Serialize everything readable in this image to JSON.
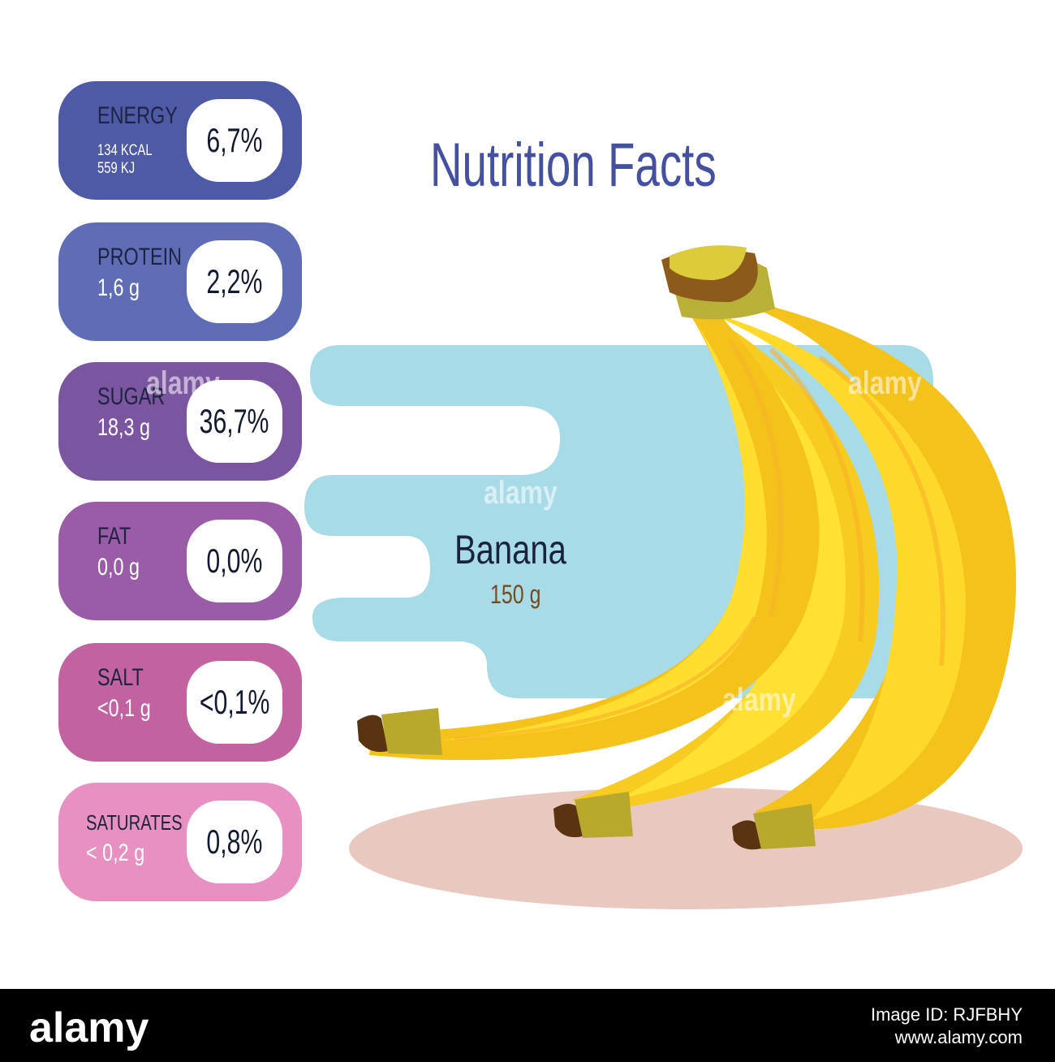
{
  "title": "Nutrition Facts",
  "product": {
    "name": "Banana",
    "weight": "150 g"
  },
  "nutrients": [
    {
      "name": "ENERGY",
      "amount_line1": "134 KCAL",
      "amount_line2": "559 KJ",
      "percent": "6,7%",
      "color": "#4f5aa7"
    },
    {
      "name": "PROTEIN",
      "amount": "1,6 g",
      "percent": "2,2%",
      "color": "#5e6db6"
    },
    {
      "name": "SUGAR",
      "amount": "18,3 g",
      "percent": "36,7%",
      "color": "#7c55a0"
    },
    {
      "name": "FAT",
      "amount": "0,0 g",
      "percent": "0,0%",
      "color": "#9a5ca6"
    },
    {
      "name": "SALT",
      "amount": "<0,1 g",
      "percent": "<0,1%",
      "color": "#c262a0"
    },
    {
      "name": "SATURATES",
      "amount": "< 0,2 g",
      "percent": "0,8%",
      "color": "#e790c1"
    }
  ],
  "watermark": "alamy",
  "footer": {
    "logo": "alamy",
    "image_id": "Image ID: RJFBHY",
    "site": "www.alamy.com"
  }
}
